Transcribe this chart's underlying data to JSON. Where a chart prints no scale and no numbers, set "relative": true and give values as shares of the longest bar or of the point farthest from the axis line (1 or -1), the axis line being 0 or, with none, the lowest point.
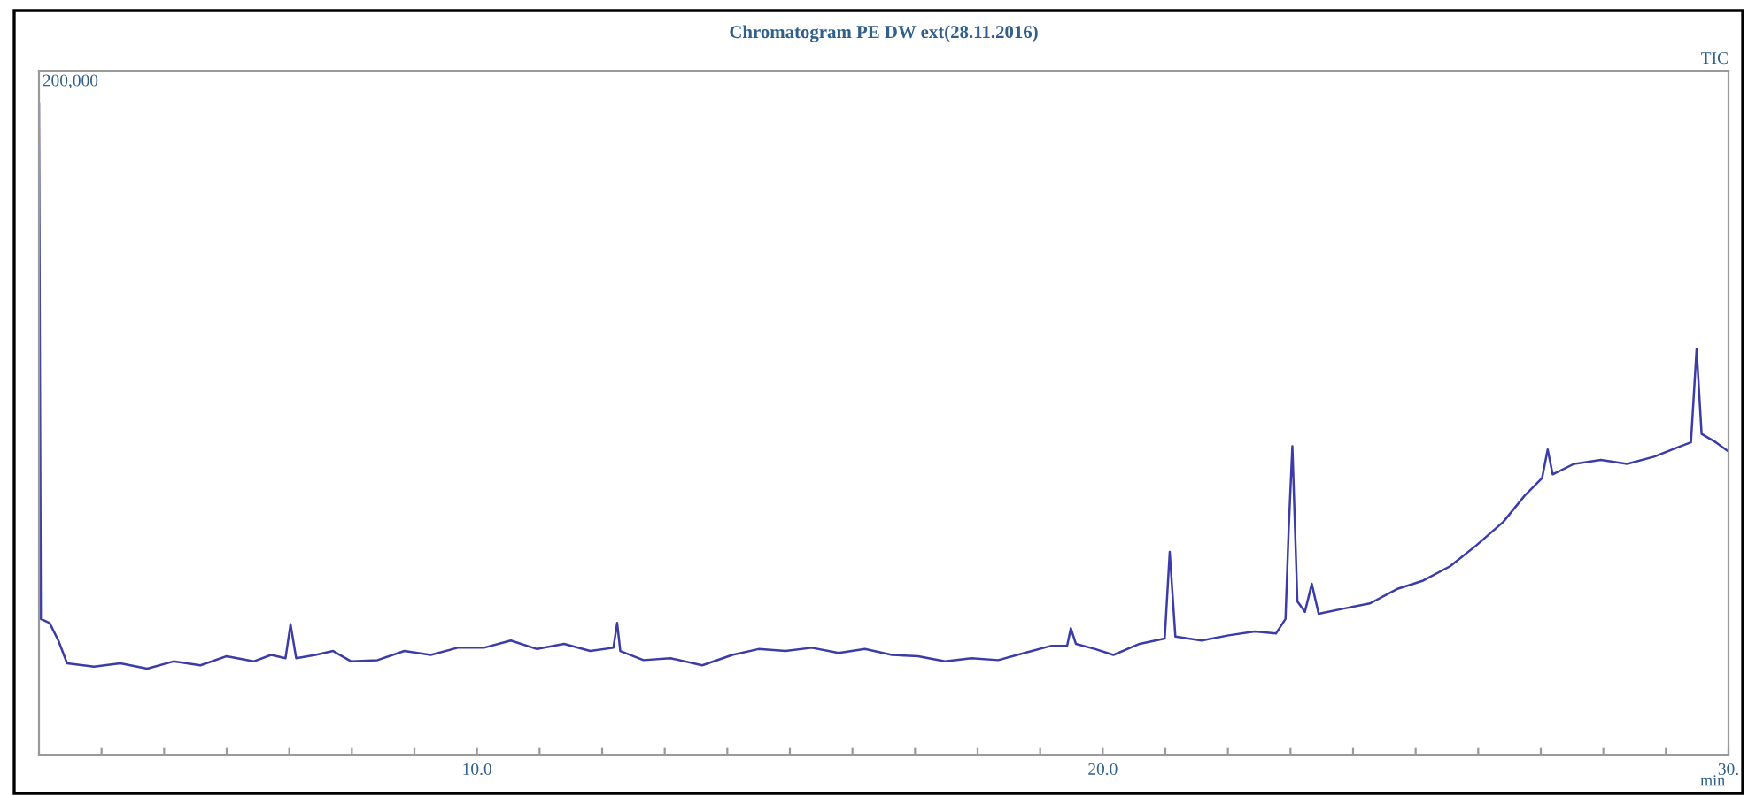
{
  "chart_data": {
    "type": "line",
    "title": "Chromatogram PE DW ext(28.11.2016)",
    "xlabel": "min",
    "annotations": [
      "200,000",
      "TIC"
    ],
    "relative": true,
    "xlim": [
      3,
      30
    ],
    "xticks": [
      {
        "value": 4,
        "label": null
      },
      {
        "value": 5,
        "label": null
      },
      {
        "value": 6,
        "label": null
      },
      {
        "value": 7,
        "label": null
      },
      {
        "value": 8,
        "label": null
      },
      {
        "value": 9,
        "label": null
      },
      {
        "value": 10,
        "label": "10.0"
      },
      {
        "value": 11,
        "label": null
      },
      {
        "value": 12,
        "label": null
      },
      {
        "value": 13,
        "label": null
      },
      {
        "value": 14,
        "label": null
      },
      {
        "value": 15,
        "label": null
      },
      {
        "value": 16,
        "label": null
      },
      {
        "value": 17,
        "label": null
      },
      {
        "value": 18,
        "label": null
      },
      {
        "value": 19,
        "label": null
      },
      {
        "value": 20,
        "label": "20.0"
      },
      {
        "value": 21,
        "label": null
      },
      {
        "value": 22,
        "label": null
      },
      {
        "value": 23,
        "label": null
      },
      {
        "value": 24,
        "label": null
      },
      {
        "value": 25,
        "label": null
      },
      {
        "value": 26,
        "label": null
      },
      {
        "value": 27,
        "label": null
      },
      {
        "value": 28,
        "label": null
      },
      {
        "value": 29,
        "label": null
      },
      {
        "value": 30,
        "label": "30."
      }
    ],
    "x": [
      3.0,
      3.03,
      3.17,
      3.31,
      3.45,
      3.88,
      4.3,
      4.73,
      5.15,
      5.58,
      6.0,
      6.43,
      6.71,
      6.94,
      7.02,
      7.11,
      7.42,
      7.7,
      7.99,
      8.41,
      8.84,
      9.26,
      9.69,
      10.11,
      10.54,
      10.96,
      11.39,
      11.81,
      12.18,
      12.24,
      12.29,
      12.66,
      13.09,
      13.6,
      14.08,
      14.5,
      14.93,
      15.35,
      15.78,
      16.2,
      16.63,
      17.05,
      17.48,
      17.9,
      18.33,
      18.75,
      19.18,
      19.43,
      19.49,
      19.57,
      19.88,
      20.17,
      20.59,
      20.99,
      21.07,
      21.16,
      21.58,
      22.01,
      22.43,
      22.77,
      22.92,
      22.97,
      23.03,
      23.11,
      23.23,
      23.34,
      23.45,
      23.85,
      24.27,
      24.7,
      25.12,
      25.55,
      25.97,
      26.4,
      26.74,
      27.02,
      27.11,
      27.19,
      27.53,
      27.96,
      28.38,
      28.81,
      29.23,
      29.4,
      29.49,
      29.57,
      29.8,
      30.0
    ],
    "series": [
      {
        "color": "#3c3ca8",
        "values": [
          1.0,
          0.209,
          0.203,
          0.176,
          0.141,
          0.136,
          0.141,
          0.133,
          0.144,
          0.138,
          0.152,
          0.144,
          0.154,
          0.149,
          0.201,
          0.149,
          0.154,
          0.16,
          0.144,
          0.146,
          0.16,
          0.154,
          0.165,
          0.165,
          0.176,
          0.163,
          0.171,
          0.16,
          0.165,
          0.203,
          0.16,
          0.146,
          0.149,
          0.138,
          0.154,
          0.163,
          0.16,
          0.165,
          0.157,
          0.163,
          0.154,
          0.152,
          0.144,
          0.149,
          0.146,
          0.157,
          0.168,
          0.168,
          0.195,
          0.171,
          0.163,
          0.154,
          0.171,
          0.179,
          0.312,
          0.182,
          0.176,
          0.184,
          0.19,
          0.187,
          0.209,
          0.344,
          0.474,
          0.236,
          0.22,
          0.263,
          0.217,
          0.225,
          0.233,
          0.255,
          0.268,
          0.29,
          0.322,
          0.358,
          0.398,
          0.425,
          0.469,
          0.431,
          0.447,
          0.453,
          0.447,
          0.458,
          0.474,
          0.48,
          0.623,
          0.493,
          0.48,
          0.466
        ]
      }
    ]
  }
}
